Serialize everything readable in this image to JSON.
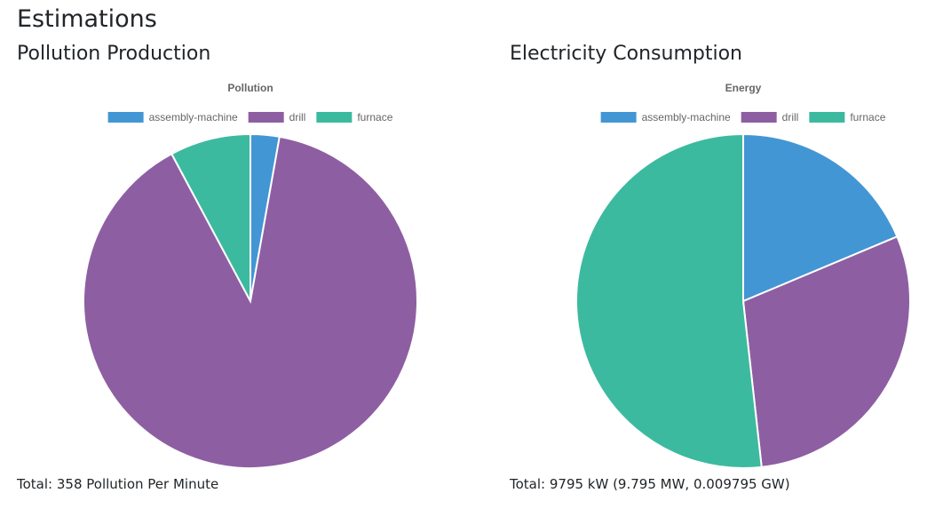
{
  "page": {
    "title": "Estimations"
  },
  "pollution": {
    "section_title": "Pollution Production",
    "total_text": "Total: 358 Pollution Per Minute"
  },
  "energy": {
    "section_title": "Electricity Consumption",
    "total_text": "Total: 9795 kW (9.795 MW, 0.009795 GW)"
  },
  "chart_data": [
    {
      "type": "pie",
      "title": "Pollution",
      "categories": [
        "assembly-machine",
        "drill",
        "furnace"
      ],
      "values": [
        10,
        320,
        28
      ],
      "colors": [
        "#4396d4",
        "#8e5ea2",
        "#3cba9f"
      ],
      "legend": "top"
    },
    {
      "type": "pie",
      "title": "Energy",
      "categories": [
        "assembly-machine",
        "drill",
        "furnace"
      ],
      "values": [
        1830,
        2895,
        5070
      ],
      "colors": [
        "#4396d4",
        "#8e5ea2",
        "#3cba9f"
      ],
      "legend": "top"
    }
  ]
}
